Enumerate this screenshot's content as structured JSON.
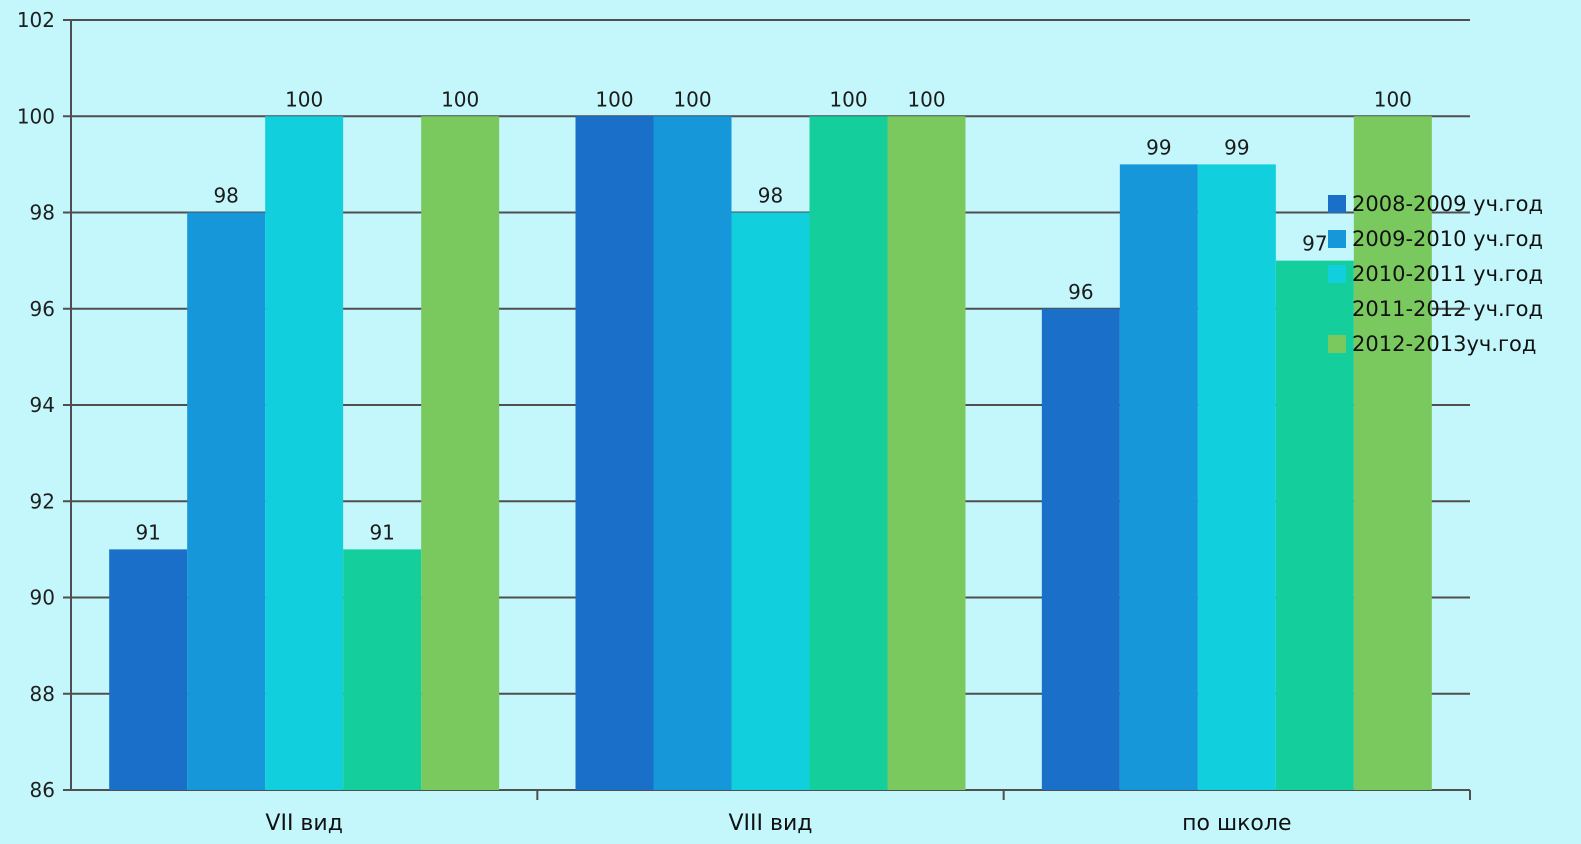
{
  "chart_data": {
    "type": "bar",
    "categories": [
      "VII вид",
      "VIII вид",
      "по школе"
    ],
    "series": [
      {
        "name": "2008-2009 уч.год",
        "values": [
          91,
          100,
          96
        ],
        "color": "#1a70c8"
      },
      {
        "name": "2009-2010 уч.год",
        "values": [
          98,
          100,
          99
        ],
        "color": "#1597da"
      },
      {
        "name": "2010-2011 уч.год",
        "values": [
          100,
          98,
          99
        ],
        "color": "#11cfdd"
      },
      {
        "name": "2011-2012 уч.год",
        "values": [
          91,
          100,
          97
        ],
        "color": "#14cf9c"
      },
      {
        "name": "2012-2013уч.год",
        "values": [
          100,
          100,
          100
        ],
        "color": "#7ac95e"
      }
    ],
    "y_ticks": [
      86,
      88,
      90,
      92,
      94,
      96,
      98,
      100,
      102
    ],
    "ylim": [
      86,
      102
    ],
    "grid": true,
    "legend_position": "right",
    "title": "",
    "xlabel": "",
    "ylabel": ""
  }
}
